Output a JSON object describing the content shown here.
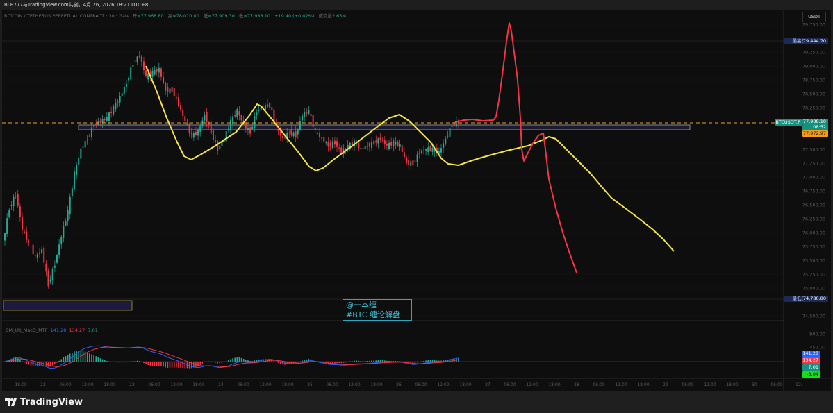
{
  "header": {
    "attribution": "BLB777与TradingView.com共创，4月 26, 2026 18:21 UTC+8"
  },
  "legend": {
    "symbol": "BITCOIN / TETHERUS PERPETUAL CONTRACT · 30 · Gate",
    "open_label": "开",
    "open": "=77,968.80",
    "high_label": "高",
    "high": "=78,010.00",
    "low_label": "低",
    "low": "=77,909.30",
    "close_label": "收",
    "close": "=77,988.10",
    "change": "+19.40 (+0.02%)",
    "volume_label": "成交量",
    "volume": "2.65M"
  },
  "price_axis": {
    "currency": "USDT",
    "ticks": [
      "79,750.00",
      "79,250.00",
      "79,000.00",
      "78,750.00",
      "78,500.00",
      "78,250.00",
      "77,500.00",
      "77,250.00",
      "77,000.00",
      "76,750.00",
      "76,500.00",
      "76,250.00",
      "76,000.00",
      "75,750.00",
      "75,500.00",
      "75,250.00",
      "75,000.00",
      "74,500.00"
    ],
    "high_label": "最高价",
    "high_value": "79,444.70",
    "low_label": "最低价",
    "low_value": "74,780.80",
    "symbol_tag": "BTCUSDT.P",
    "last_price": "77,988.10",
    "countdown": "08:52",
    "ref_price": "77,972.97"
  },
  "macd": {
    "name": "CM_Ult_MacD_MTF",
    "macd": "141.28",
    "signal": "134.27",
    "hist": "7.01",
    "axis_ticks": [
      "900.00",
      "450.00"
    ],
    "tags": [
      "141.28",
      "134.27",
      "7.01",
      "-3.04"
    ]
  },
  "time_axis": [
    "18:00",
    "22",
    "06:00",
    "12:00",
    "18:00",
    "23",
    "06:00",
    "12:00",
    "18:00",
    "24",
    "06:00",
    "12:00",
    "18:00",
    "25",
    "06:00",
    "12:00",
    "18:00",
    "26",
    "06:00",
    "12:00",
    "18:00",
    "27",
    "06:00",
    "12:00",
    "18:00",
    "28",
    "06:00",
    "12:00",
    "18:00",
    "29",
    "06:00",
    "12:00",
    "18:00",
    "30",
    "06:00",
    "12:"
  ],
  "watermark": {
    "line1": "@一本缠",
    "line2": "#BTC 缠论解盘"
  },
  "footer": {
    "brand": "TradingView"
  },
  "colors": {
    "up": "#22ab94",
    "down": "#f23645",
    "projection_yellow": "#f5e642",
    "projection_red": "#f23645",
    "last_price_line": "#f0a020",
    "macd_line": "#2962ff",
    "signal_line": "#f23645"
  },
  "chart_data": {
    "type": "candlestick",
    "title": "BITCOIN / TETHERUS PERPETUAL CONTRACT · 30 · Gate",
    "ylabel": "USDT",
    "ylim": [
      74400,
      79900
    ],
    "x_start": "Apr 21 13:30",
    "x_end": "Apr 26 18:00",
    "approx_closes": [
      75810,
      76440,
      76690,
      76060,
      75810,
      75560,
      75690,
      75060,
      75440,
      75940,
      76380,
      77060,
      77500,
      77690,
      77940,
      78000,
      78060,
      78250,
      78440,
      78690,
      79060,
      79190,
      78810,
      78880,
      78940,
      78560,
      78560,
      78310,
      78000,
      77750,
      77810,
      78120,
      77810,
      77500,
      77690,
      78000,
      78190,
      77940,
      77810,
      78190,
      78250,
      78310,
      77880,
      77690,
      77810,
      77750,
      78120,
      78190,
      77810,
      77690,
      77560,
      77620,
      77440,
      77560,
      77620,
      77500,
      77560,
      77620,
      77690,
      77560,
      77620,
      77560,
      77250,
      77250,
      77440,
      77500,
      77500,
      77440,
      77690,
      77940,
      77988.1
    ],
    "period_high": 79444.7,
    "period_low": 74780.8,
    "last_price": 77988.1
  }
}
